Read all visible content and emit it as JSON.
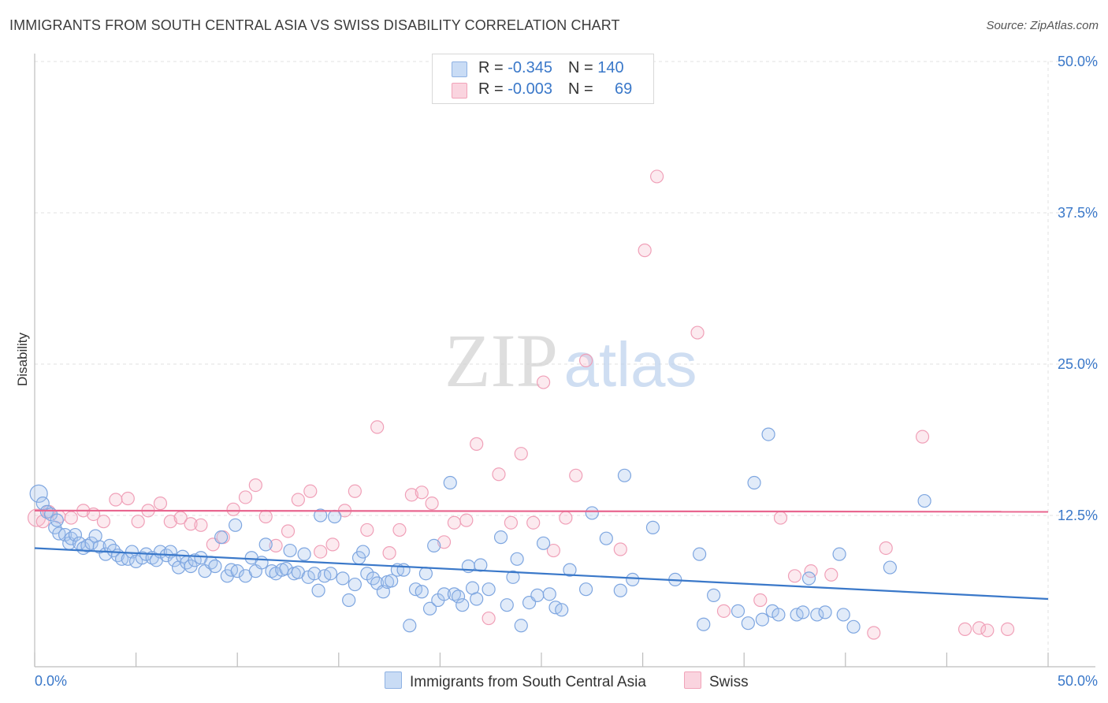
{
  "header": {
    "title": "IMMIGRANTS FROM SOUTH CENTRAL ASIA VS SWISS DISABILITY CORRELATION CHART",
    "source": "Source: ZipAtlas.com"
  },
  "watermark": {
    "zip": "ZIP",
    "atlas": "atlas"
  },
  "legend": {
    "rows": [
      {
        "r_label": "R = ",
        "r_value": "-0.345",
        "n_label": "N = ",
        "n_value": "140",
        "color": "#a9c7ef"
      },
      {
        "r_label": "R = ",
        "r_value": "-0.003",
        "n_label": "N = ",
        "n_value": "69",
        "color": "#f6b8ca"
      }
    ]
  },
  "bottom_legend": {
    "items": [
      {
        "label": "Immigrants from South Central Asia",
        "color": "#a9c7ef"
      },
      {
        "label": "Swiss",
        "color": "#f6b8ca"
      }
    ]
  },
  "chart_data": {
    "type": "scatter",
    "ylabel": "Disability",
    "xlim": [
      0,
      50
    ],
    "ylim": [
      0,
      50
    ],
    "x_tick_labels": [
      "0.0%",
      "50.0%"
    ],
    "y_tick_values": [
      12.5,
      25.0,
      37.5,
      50.0
    ],
    "y_tick_labels": [
      "12.5%",
      "25.0%",
      "37.5%",
      "50.0%"
    ],
    "grid": true,
    "colors": {
      "blue": "#3a78c9",
      "blue_fill": "#a9c7ef",
      "pink": "#e8668f",
      "pink_fill": "#f6b8ca",
      "tick_label": "#3a78c9"
    },
    "series": [
      {
        "name": "Immigrants from South Central Asia",
        "trend": {
          "x": [
            0,
            50
          ],
          "y": [
            9.8,
            5.6
          ]
        },
        "points": [
          [
            0.2,
            14.3
          ],
          [
            0.4,
            13.5
          ],
          [
            0.6,
            12.8
          ],
          [
            0.8,
            12.6
          ],
          [
            1.0,
            11.5
          ],
          [
            1.1,
            12.1
          ],
          [
            1.2,
            11.0
          ],
          [
            1.5,
            10.9
          ],
          [
            1.7,
            10.2
          ],
          [
            1.8,
            10.6
          ],
          [
            2.0,
            10.9
          ],
          [
            2.2,
            10.2
          ],
          [
            2.4,
            9.8
          ],
          [
            2.6,
            10.0
          ],
          [
            2.8,
            10.2
          ],
          [
            3.0,
            10.8
          ],
          [
            3.2,
            9.9
          ],
          [
            3.5,
            9.3
          ],
          [
            3.7,
            10.0
          ],
          [
            3.9,
            9.6
          ],
          [
            4.1,
            9.2
          ],
          [
            4.3,
            8.9
          ],
          [
            4.6,
            8.9
          ],
          [
            4.8,
            9.5
          ],
          [
            5.0,
            8.7
          ],
          [
            5.3,
            9.0
          ],
          [
            5.5,
            9.3
          ],
          [
            5.8,
            9.0
          ],
          [
            6.0,
            8.8
          ],
          [
            6.2,
            9.5
          ],
          [
            6.5,
            9.2
          ],
          [
            6.7,
            9.5
          ],
          [
            6.9,
            8.8
          ],
          [
            7.1,
            8.2
          ],
          [
            7.3,
            9.1
          ],
          [
            7.5,
            8.6
          ],
          [
            7.7,
            8.3
          ],
          [
            7.9,
            8.8
          ],
          [
            8.2,
            9.0
          ],
          [
            8.4,
            7.9
          ],
          [
            8.7,
            8.6
          ],
          [
            8.9,
            8.3
          ],
          [
            9.2,
            10.7
          ],
          [
            9.5,
            7.5
          ],
          [
            9.7,
            8.0
          ],
          [
            9.9,
            11.7
          ],
          [
            10.0,
            7.9
          ],
          [
            10.4,
            7.5
          ],
          [
            10.7,
            9.0
          ],
          [
            10.9,
            7.9
          ],
          [
            11.2,
            8.6
          ],
          [
            11.4,
            10.1
          ],
          [
            11.7,
            7.9
          ],
          [
            11.9,
            7.7
          ],
          [
            12.2,
            8.0
          ],
          [
            12.4,
            8.1
          ],
          [
            12.6,
            9.6
          ],
          [
            12.8,
            7.7
          ],
          [
            13.0,
            7.8
          ],
          [
            13.3,
            9.3
          ],
          [
            13.5,
            7.4
          ],
          [
            13.8,
            7.7
          ],
          [
            14.0,
            6.3
          ],
          [
            14.1,
            12.5
          ],
          [
            14.3,
            7.5
          ],
          [
            14.6,
            7.7
          ],
          [
            14.8,
            12.4
          ],
          [
            15.2,
            7.3
          ],
          [
            15.5,
            5.5
          ],
          [
            15.8,
            6.8
          ],
          [
            16.0,
            9.0
          ],
          [
            16.2,
            9.5
          ],
          [
            16.4,
            7.7
          ],
          [
            16.7,
            7.3
          ],
          [
            16.9,
            6.9
          ],
          [
            17.2,
            6.2
          ],
          [
            17.4,
            7.0
          ],
          [
            17.6,
            7.1
          ],
          [
            17.9,
            8.0
          ],
          [
            18.2,
            8.0
          ],
          [
            18.5,
            3.4
          ],
          [
            18.8,
            6.4
          ],
          [
            19.1,
            6.2
          ],
          [
            19.3,
            7.7
          ],
          [
            19.5,
            4.8
          ],
          [
            19.7,
            10.0
          ],
          [
            19.9,
            5.5
          ],
          [
            20.2,
            6.0
          ],
          [
            20.5,
            15.2
          ],
          [
            20.7,
            6.0
          ],
          [
            20.9,
            5.8
          ],
          [
            21.1,
            5.1
          ],
          [
            21.4,
            8.3
          ],
          [
            21.6,
            6.5
          ],
          [
            21.8,
            5.6
          ],
          [
            22.0,
            8.4
          ],
          [
            22.4,
            6.4
          ],
          [
            23.0,
            10.7
          ],
          [
            23.3,
            5.1
          ],
          [
            23.6,
            7.4
          ],
          [
            23.8,
            8.9
          ],
          [
            24.0,
            3.4
          ],
          [
            24.4,
            5.3
          ],
          [
            24.8,
            5.9
          ],
          [
            25.1,
            10.2
          ],
          [
            25.4,
            6.0
          ],
          [
            25.7,
            4.9
          ],
          [
            26.0,
            4.7
          ],
          [
            26.4,
            8.0
          ],
          [
            27.2,
            6.4
          ],
          [
            27.5,
            12.7
          ],
          [
            28.2,
            10.6
          ],
          [
            28.9,
            6.3
          ],
          [
            29.1,
            15.8
          ],
          [
            29.5,
            7.2
          ],
          [
            30.5,
            11.5
          ],
          [
            31.6,
            7.2
          ],
          [
            32.8,
            9.3
          ],
          [
            33.0,
            3.5
          ],
          [
            33.5,
            5.9
          ],
          [
            34.7,
            4.6
          ],
          [
            35.2,
            3.6
          ],
          [
            35.5,
            15.2
          ],
          [
            35.9,
            3.9
          ],
          [
            36.2,
            19.2
          ],
          [
            36.4,
            4.6
          ],
          [
            36.7,
            4.3
          ],
          [
            37.6,
            4.3
          ],
          [
            37.9,
            4.5
          ],
          [
            38.2,
            7.3
          ],
          [
            38.6,
            4.3
          ],
          [
            39.0,
            4.5
          ],
          [
            39.7,
            9.3
          ],
          [
            39.9,
            4.3
          ],
          [
            40.4,
            3.3
          ],
          [
            42.2,
            8.2
          ],
          [
            43.9,
            13.7
          ]
        ]
      },
      {
        "name": "Swiss",
        "trend": {
          "x": [
            0,
            50
          ],
          "y": [
            12.9,
            12.8
          ]
        },
        "points": [
          [
            0.1,
            12.3
          ],
          [
            0.4,
            12.0
          ],
          [
            0.7,
            12.8
          ],
          [
            1.2,
            12.4
          ],
          [
            1.8,
            12.3
          ],
          [
            2.4,
            12.9
          ],
          [
            2.9,
            12.6
          ],
          [
            3.4,
            12.0
          ],
          [
            4.0,
            13.8
          ],
          [
            4.6,
            13.9
          ],
          [
            5.1,
            12.0
          ],
          [
            5.6,
            12.9
          ],
          [
            6.2,
            13.5
          ],
          [
            6.7,
            12.0
          ],
          [
            7.2,
            12.3
          ],
          [
            7.7,
            11.8
          ],
          [
            8.2,
            11.7
          ],
          [
            8.8,
            10.1
          ],
          [
            9.3,
            10.7
          ],
          [
            9.8,
            13.0
          ],
          [
            10.4,
            14.0
          ],
          [
            10.9,
            15.0
          ],
          [
            11.4,
            12.4
          ],
          [
            11.9,
            10.0
          ],
          [
            12.5,
            11.2
          ],
          [
            13.0,
            13.8
          ],
          [
            13.6,
            14.5
          ],
          [
            14.1,
            9.5
          ],
          [
            14.7,
            10.1
          ],
          [
            15.3,
            12.9
          ],
          [
            15.8,
            14.5
          ],
          [
            16.4,
            11.3
          ],
          [
            16.9,
            19.8
          ],
          [
            17.5,
            9.4
          ],
          [
            18.0,
            11.3
          ],
          [
            18.6,
            14.2
          ],
          [
            19.1,
            14.4
          ],
          [
            19.6,
            13.5
          ],
          [
            20.2,
            10.3
          ],
          [
            20.7,
            11.9
          ],
          [
            21.3,
            12.1
          ],
          [
            21.8,
            18.4
          ],
          [
            22.4,
            4.0
          ],
          [
            22.9,
            15.9
          ],
          [
            23.5,
            11.9
          ],
          [
            24.0,
            17.6
          ],
          [
            24.6,
            11.9
          ],
          [
            25.1,
            23.5
          ],
          [
            25.6,
            9.6
          ],
          [
            26.2,
            12.3
          ],
          [
            26.7,
            15.8
          ],
          [
            27.2,
            25.3
          ],
          [
            28.9,
            9.7
          ],
          [
            30.1,
            34.4
          ],
          [
            30.7,
            40.5
          ],
          [
            32.7,
            27.6
          ],
          [
            34.0,
            4.6
          ],
          [
            35.8,
            5.5
          ],
          [
            36.8,
            12.3
          ],
          [
            37.5,
            7.5
          ],
          [
            38.3,
            7.9
          ],
          [
            39.3,
            7.6
          ],
          [
            41.4,
            2.8
          ],
          [
            42.0,
            9.8
          ],
          [
            43.8,
            19.0
          ],
          [
            45.9,
            3.1
          ],
          [
            46.6,
            3.2
          ],
          [
            47.0,
            3.0
          ],
          [
            48.0,
            3.1
          ]
        ]
      }
    ]
  }
}
